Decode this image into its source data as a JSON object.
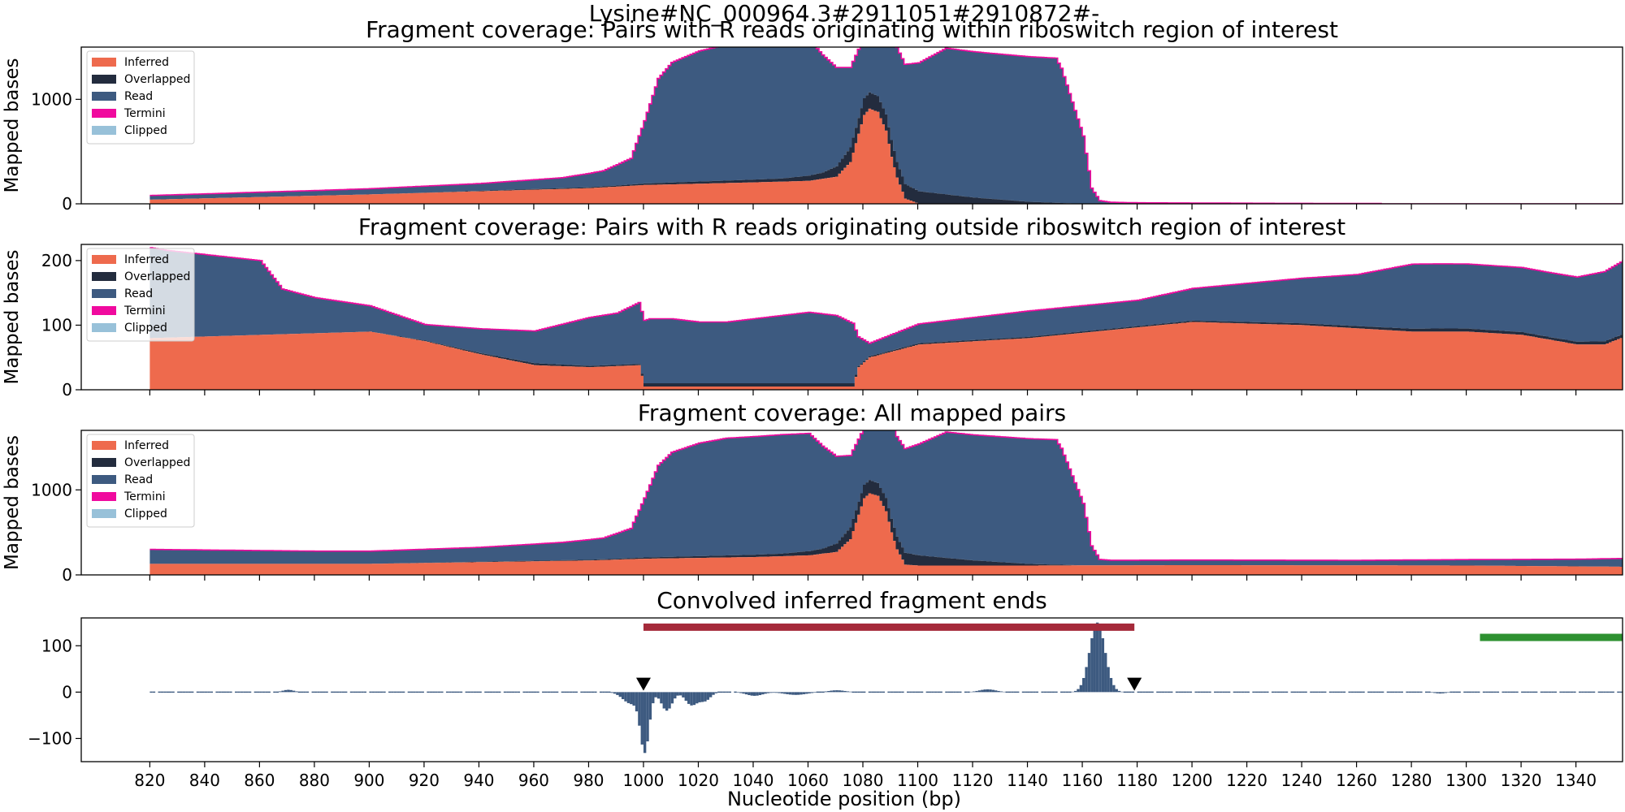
{
  "figure": {
    "suptitle": "Lysine#NC_000964.3#2911051#2910872#-",
    "xlabel": "Nucleotide position (bp)"
  },
  "colors": {
    "inferred": "#ee6a4d",
    "overlapped": "#232c3e",
    "read": "#3d5a80",
    "termini": "#f00a9e",
    "clipped": "#98c1d9",
    "riboswitch_bar": "#a52a3a",
    "green_bar": "#2e9131"
  },
  "legend": [
    "Inferred",
    "Overlapped",
    "Read",
    "Termini",
    "Clipped"
  ],
  "chart_data": [
    {
      "type": "area",
      "title": "Fragment coverage: Pairs with R reads originating within riboswitch region of interest",
      "ylabel": "Mapped bases",
      "xlim": [
        795,
        1357
      ],
      "ylim": [
        0,
        1500
      ],
      "yticks": [
        0,
        1000
      ],
      "legend_position": "upper-left",
      "series": [
        {
          "name": "Inferred",
          "x": [
            820,
            900,
            980,
            990,
            1000,
            1040,
            1060,
            1070,
            1075,
            1080,
            1082,
            1085,
            1088,
            1090,
            1092,
            1095,
            1100,
            1160
          ],
          "y": [
            40,
            90,
            150,
            165,
            180,
            205,
            220,
            260,
            400,
            850,
            910,
            880,
            700,
            450,
            250,
            50,
            0,
            0
          ]
        },
        {
          "name": "Overlapped",
          "x": [
            820,
            900,
            990,
            1000,
            1050,
            1065,
            1075,
            1080,
            1085,
            1090,
            1095,
            1100,
            1110,
            1120,
            1130,
            1140,
            1150,
            1160
          ],
          "y": [
            0,
            0,
            10,
            15,
            30,
            60,
            140,
            160,
            150,
            160,
            140,
            120,
            90,
            60,
            40,
            20,
            10,
            0
          ]
        },
        {
          "name": "Read",
          "x": [
            820,
            850,
            880,
            900,
            940,
            970,
            985,
            995,
            1000,
            1005,
            1010,
            1020,
            1030,
            1050,
            1060,
            1080,
            1090,
            1110,
            1150,
            1152,
            1155,
            1160,
            1163,
            1166,
            1170,
            1180,
            1200,
            1230,
            1268,
            1269,
            1357
          ],
          "y": [
            40,
            45,
            50,
            55,
            70,
            100,
            150,
            250,
            600,
            1000,
            1150,
            1250,
            1300,
            1320,
            1305,
            585,
            1060,
            1400,
            1385,
            1290,
            1050,
            650,
            150,
            30,
            15,
            10,
            8,
            5,
            3,
            0,
            0
          ]
        }
      ]
    },
    {
      "type": "area",
      "title": "Fragment coverage: Pairs with R reads originating outside riboswitch region of interest",
      "ylabel": "Mapped bases",
      "xlim": [
        795,
        1357
      ],
      "ylim": [
        0,
        225
      ],
      "yticks": [
        0,
        100,
        200
      ],
      "legend_position": "upper-left",
      "series": [
        {
          "name": "Inferred",
          "x": [
            820,
            860,
            900,
            920,
            940,
            960,
            980,
            998,
            1000,
            1060,
            1076,
            1078,
            1082,
            1100,
            1140,
            1200,
            1240,
            1280,
            1300,
            1320,
            1340,
            1350,
            1359,
            1360
          ],
          "y": [
            80,
            85,
            90,
            75,
            55,
            38,
            35,
            38,
            5,
            5,
            5,
            35,
            50,
            70,
            80,
            105,
            100,
            90,
            90,
            85,
            70,
            70,
            85,
            0
          ]
        },
        {
          "name": "Overlapped",
          "x": [
            820,
            900,
            940,
            960,
            980,
            998,
            1000,
            1060,
            1076,
            1078,
            1200,
            1250,
            1290,
            1330,
            1350,
            1359,
            1360
          ],
          "y": [
            0,
            0,
            2,
            3,
            2,
            2,
            5,
            5,
            5,
            2,
            2,
            3,
            5,
            4,
            5,
            5,
            0
          ]
        },
        {
          "name": "Read",
          "x": [
            820,
            826,
            860,
            868,
            880,
            900,
            920,
            960,
            980,
            990,
            998,
            1002,
            1010,
            1020,
            1030,
            1040,
            1060,
            1070,
            1076,
            1078,
            1082,
            1100,
            1140,
            1180,
            1200,
            1240,
            1260,
            1280,
            1300,
            1320,
            1340,
            1359,
            1360
          ],
          "y": [
            140,
            135,
            115,
            70,
            55,
            40,
            25,
            50,
            75,
            80,
            95,
            100,
            100,
            95,
            95,
            100,
            110,
            105,
            93,
            45,
            20,
            30,
            40,
            40,
            50,
            70,
            80,
            100,
            100,
            100,
            100,
            115,
            0
          ]
        }
      ]
    },
    {
      "type": "area",
      "title": "Fragment coverage: All mapped pairs",
      "ylabel": "Mapped bases",
      "xlim": [
        795,
        1357
      ],
      "ylim": [
        0,
        1700
      ],
      "yticks": [
        0,
        1000
      ],
      "legend_position": "upper-left",
      "series": [
        {
          "name": "Inferred",
          "x": [
            820,
            900,
            980,
            990,
            1000,
            1040,
            1060,
            1070,
            1075,
            1080,
            1082,
            1085,
            1088,
            1090,
            1092,
            1095,
            1100,
            1140,
            1200,
            1300,
            1359,
            1360
          ],
          "y": [
            130,
            130,
            170,
            180,
            190,
            210,
            230,
            270,
            420,
            900,
            960,
            930,
            750,
            500,
            300,
            120,
            110,
            110,
            115,
            110,
            95,
            0
          ]
        },
        {
          "name": "Overlapped",
          "x": [
            820,
            900,
            990,
            1000,
            1050,
            1065,
            1075,
            1080,
            1085,
            1090,
            1095,
            1100,
            1110,
            1120,
            1130,
            1140,
            1150,
            1160,
            1359,
            1360
          ],
          "y": [
            0,
            0,
            10,
            15,
            30,
            60,
            140,
            160,
            150,
            160,
            140,
            120,
            90,
            60,
            40,
            20,
            10,
            0,
            0,
            0
          ]
        },
        {
          "name": "Read",
          "x": [
            820,
            850,
            880,
            900,
            940,
            970,
            985,
            995,
            1000,
            1005,
            1010,
            1020,
            1030,
            1050,
            1060,
            1080,
            1090,
            1110,
            1150,
            1152,
            1155,
            1160,
            1163,
            1166,
            1170,
            1200,
            1260,
            1300,
            1340,
            1359,
            1360
          ],
          "y": [
            170,
            160,
            150,
            150,
            170,
            210,
            250,
            350,
            700,
            1080,
            1230,
            1330,
            1380,
            1400,
            1385,
            665,
            1140,
            1480,
            1470,
            1370,
            1130,
            730,
            230,
            70,
            60,
            60,
            60,
            70,
            85,
            100,
            0
          ]
        }
      ]
    },
    {
      "type": "bar",
      "title": "Convolved inferred fragment ends",
      "ylabel": "",
      "xlim": [
        795,
        1357
      ],
      "ylim": [
        -150,
        160
      ],
      "yticks": [
        -100,
        0,
        100
      ],
      "xticks": [
        820,
        840,
        860,
        880,
        900,
        920,
        940,
        960,
        980,
        1000,
        1020,
        1040,
        1060,
        1080,
        1100,
        1120,
        1140,
        1160,
        1180,
        1200,
        1220,
        1240,
        1260,
        1280,
        1300,
        1320,
        1340
      ],
      "peaks": [
        {
          "center": 1000,
          "amp": -125,
          "width": 1.6
        },
        {
          "center": 995,
          "amp": -25,
          "width": 3
        },
        {
          "center": 1008,
          "amp": -40,
          "width": 2
        },
        {
          "center": 1017,
          "amp": -28,
          "width": 2.2
        },
        {
          "center": 1022,
          "amp": -18,
          "width": 2
        },
        {
          "center": 1040,
          "amp": -8,
          "width": 3
        },
        {
          "center": 1055,
          "amp": -6,
          "width": 4
        },
        {
          "center": 1165,
          "amp": 150,
          "width": 2.8
        },
        {
          "center": 1070,
          "amp": 4,
          "width": 3
        },
        {
          "center": 1125,
          "amp": 6,
          "width": 3
        },
        {
          "center": 870,
          "amp": 5,
          "width": 2
        },
        {
          "center": 1290,
          "amp": -3,
          "width": 2
        }
      ],
      "annotations": {
        "riboswitch_bar": {
          "x": [
            1000,
            1179
          ],
          "y": 140
        },
        "green_bar": {
          "x": [
            1305,
            1375
          ],
          "y": 118
        },
        "markers": [
          {
            "x": 1000,
            "y": 17
          },
          {
            "x": 1179,
            "y": 17
          }
        ]
      }
    }
  ]
}
